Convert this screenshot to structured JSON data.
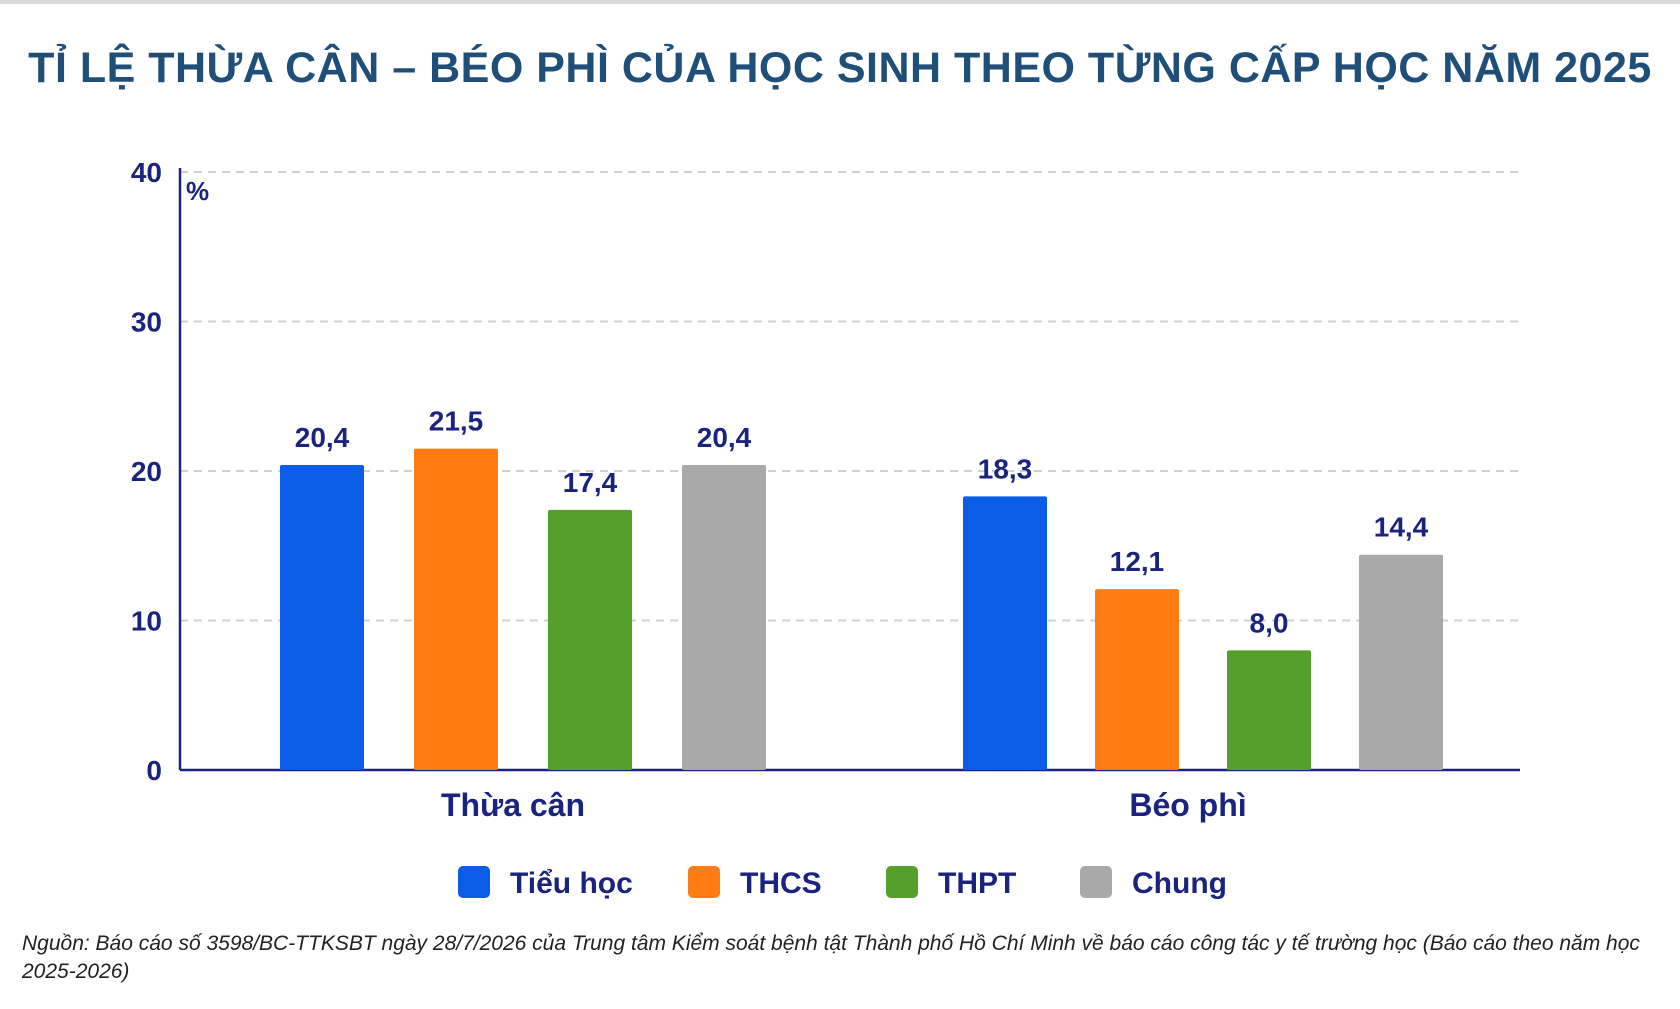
{
  "title": "TỈ LỆ THỪA CÂN – BÉO PHÌ CỦA HỌC SINH THEO TỪNG CẤP HỌC NĂM 2025",
  "source": "Nguồn: Báo cáo số 3598/BC-TTKSBT ngày 28/7/2026 của Trung tâm Kiểm soát bệnh tật Thành phố Hồ Chí Minh về báo cáo công tác y tế trường học (Báo cáo theo năm học 2025-2026)",
  "chart_data": {
    "type": "bar",
    "title": "TỈ LỆ THỪA CÂN – BÉO PHÌ CỦA HỌC SINH THEO TỪNG CẤP HỌC NĂM 2025",
    "ylabel": "%",
    "xlabel": "",
    "ylim": [
      0,
      40
    ],
    "yticks": [
      0,
      10,
      20,
      30,
      40
    ],
    "grid": true,
    "legend_position": "bottom",
    "categories": [
      "Thừa cân",
      "Béo phì"
    ],
    "series": [
      {
        "name": "Tiểu học",
        "color": "#0b5de8",
        "values": [
          20.4,
          18.3
        ],
        "labels": [
          "20,4",
          "18,3"
        ]
      },
      {
        "name": "THCS",
        "color": "#ff7c12",
        "values": [
          21.5,
          12.1
        ],
        "labels": [
          "21,5",
          "12,1"
        ]
      },
      {
        "name": "THPT",
        "color": "#55a02b",
        "values": [
          17.4,
          8.0
        ],
        "labels": [
          "17,4",
          "8,0"
        ]
      },
      {
        "name": "Chung",
        "color": "#a9a9a9",
        "values": [
          20.4,
          14.4
        ],
        "labels": [
          "20,4",
          "14,4"
        ]
      }
    ]
  },
  "colors": {
    "title": "#1f4e79",
    "text": "#1a237e",
    "grid": "#d0d0d0"
  }
}
